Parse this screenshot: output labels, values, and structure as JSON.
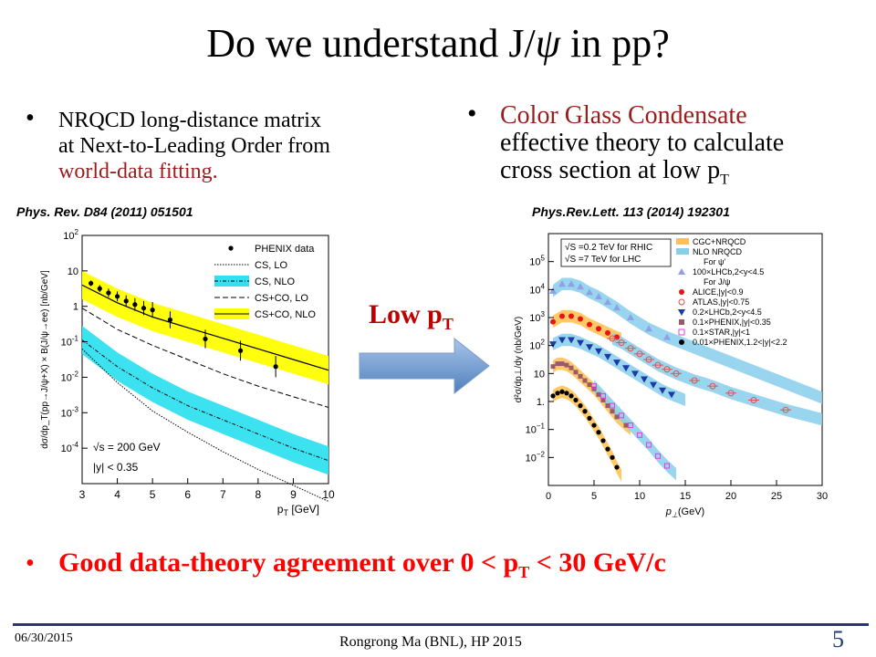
{
  "slide": {
    "title_pre": "Do we understand J/",
    "title_psi": "ψ",
    "title_post": " in pp?",
    "left_bullet_line1": "NRQCD long-distance matrix",
    "left_bullet_line2": "at Next-to-Leading Order from",
    "left_bullet_line3": "world-data fitting.",
    "right_bullet_line1": "Color Glass Condensate",
    "right_bullet_line2": "effective theory to calculate",
    "right_bullet_line3": "cross section at low p",
    "right_bullet_sub": "T",
    "left_ref": "Phys. Rev. D84 (2011) 051501",
    "right_ref": "Phys.Rev.Lett. 113 (2014) 192301",
    "arrow_label": "Low p",
    "arrow_label_sub": "T",
    "conclusion_pre": "Good data-theory agreement over 0 < p",
    "conclusion_sub": "T",
    "conclusion_post": " < 30 GeV/c",
    "footer_date": "06/30/2015",
    "footer_author": "Rongrong Ma (BNL), HP 2015",
    "page_number": "5",
    "bullet_glyph": "•",
    "colors": {
      "accent_red": "#9b1c1c",
      "conclusion_red": "#ff0000",
      "arrow_blue": "#4f81bd",
      "footer_blue": "#1f3a78"
    }
  },
  "chart_data": [
    {
      "type": "line",
      "log_y": true,
      "xlabel": "p",
      "xlabel_sub": "T",
      "xlabel_unit": " [GeV]",
      "ylabel": "dσ/dp_T(pp→J/ψ+X) × B(J/ψ→ee)  [nb/GeV]",
      "xlim": [
        3,
        10
      ],
      "ylim_exp": [
        -5,
        2
      ],
      "x_ticks": [
        "3",
        "4",
        "5",
        "6",
        "7",
        "8",
        "9",
        "10"
      ],
      "y_ticks": [
        {
          "base": "10",
          "exp": "2"
        },
        {
          "base": "10",
          "exp": ""
        },
        {
          "base": "1",
          "exp": ""
        },
        {
          "base": "10",
          "exp": "-1"
        },
        {
          "base": "10",
          "exp": "-2"
        },
        {
          "base": "10",
          "exp": "-3"
        },
        {
          "base": "10",
          "exp": "-4"
        }
      ],
      "legend": [
        "PHENIX data",
        "CS, LO",
        "CS, NLO",
        "CS+CO, LO",
        "CS+CO, NLO"
      ],
      "annotation_energy": "√s = 200 GeV",
      "annotation_rapidity": "|y| < 0.35",
      "series": [
        {
          "name": "PHENIX data",
          "x": [
            3.25,
            3.5,
            3.75,
            4.0,
            4.25,
            4.5,
            4.75,
            5.0,
            5.5,
            6.5,
            7.5,
            8.5
          ],
          "y_log10": [
            0.65,
            0.5,
            0.38,
            0.28,
            0.15,
            0.05,
            -0.05,
            -0.1,
            -0.38,
            -0.92,
            -1.25,
            -1.7
          ]
        },
        {
          "name": "CS+CO, NLO",
          "x": [
            3,
            4,
            5,
            6,
            7,
            8,
            9,
            10
          ],
          "y_log10": [
            0.6,
            0.1,
            -0.3,
            -0.6,
            -0.9,
            -1.2,
            -1.5,
            -1.8
          ],
          "band_halfwidth": 0.4
        },
        {
          "name": "CS+CO, LO",
          "x": [
            3,
            4,
            5,
            6,
            7,
            8,
            9,
            10
          ],
          "y_log10": [
            -0.05,
            -0.65,
            -1.1,
            -1.5,
            -1.9,
            -2.25,
            -2.55,
            -2.85
          ]
        },
        {
          "name": "CS, NLO",
          "x": [
            3,
            4,
            5,
            6,
            7,
            8,
            9,
            10
          ],
          "y_log10": [
            -0.95,
            -1.7,
            -2.3,
            -2.8,
            -3.2,
            -3.6,
            -4.0,
            -4.35
          ],
          "band_halfwidth": 0.4
        },
        {
          "name": "CS, LO",
          "x": [
            3,
            4,
            5,
            6,
            7,
            8,
            9,
            10
          ],
          "y_log10": [
            -1.2,
            -2.15,
            -2.95,
            -3.55,
            -4.1,
            -4.6,
            -5.05,
            -5.5
          ]
        }
      ]
    },
    {
      "type": "scatter",
      "log_y": true,
      "xlabel": "p",
      "xlabel_sub": "⊥",
      "xlabel_unit": "(GeV)",
      "ylabel": "d²σ/dp⊥/dy (nb/GeV)",
      "xlim": [
        0,
        30
      ],
      "ylim_exp": [
        -3,
        6
      ],
      "x_ticks": [
        "0",
        "5",
        "10",
        "15",
        "20",
        "25",
        "30"
      ],
      "y_ticks": [
        {
          "base": "10",
          "exp": "5"
        },
        {
          "base": "10",
          "exp": "4"
        },
        {
          "base": "10",
          "exp": "3"
        },
        {
          "base": "10",
          "exp": "2"
        },
        {
          "base": "10",
          "exp": ""
        },
        {
          "base": "1.",
          "exp": ""
        },
        {
          "base": "10",
          "exp": "−1"
        },
        {
          "base": "10",
          "exp": "−2"
        }
      ],
      "info_rhic": "√S =0.2 TeV for RHIC",
      "info_lhc": "√S =7 TeV for LHC",
      "legend": [
        "CGC+NRQCD",
        "NLO NRQCD",
        "For ψ'",
        "100×LHCb,2<y<4.5",
        "For J/ψ",
        "ALICE,|y|<0.9",
        "ATLAS,|y|<0.75",
        "0.2×LHCb,2<y<4.5",
        "0.1×PHENIX,|y|<0.35",
        "0.1×STAR,|y|<1",
        "0.01×PHENIX,1.2<|y|<2.2"
      ],
      "series": [
        {
          "name": "100×LHCb,2<y<4.5",
          "x": [
            0.5,
            1.5,
            2.5,
            3.5,
            4.5,
            5.5,
            6.5,
            7.5,
            9,
            11,
            13
          ],
          "y_log10": [
            3.95,
            4.2,
            4.2,
            4.1,
            3.9,
            3.75,
            3.55,
            3.35,
            3.0,
            2.6,
            2.3
          ]
        },
        {
          "name": "ALICE,|y|<0.9",
          "x": [
            0.5,
            1.5,
            2.5,
            3.5,
            4.5,
            5.5,
            6.5,
            7.5
          ],
          "y_log10": [
            2.85,
            3.05,
            3.05,
            2.95,
            2.75,
            2.6,
            2.45,
            2.3
          ]
        },
        {
          "name": "ATLAS,|y|<0.75",
          "x": [
            7,
            8,
            9,
            10,
            11,
            12,
            13,
            14,
            16,
            18,
            20,
            22.5,
            26
          ],
          "y_log10": [
            2.25,
            2.1,
            1.9,
            1.7,
            1.5,
            1.3,
            1.15,
            1.0,
            0.75,
            0.55,
            0.3,
            0.05,
            -0.3
          ]
        },
        {
          "name": "0.2×LHCb,2<y<4.5",
          "x": [
            0.5,
            1.5,
            2.5,
            3.5,
            4.5,
            5.5,
            6.5,
            7.5,
            8.5,
            9.5,
            10.5,
            11.5,
            12.5,
            13.5
          ],
          "y_log10": [
            2.05,
            2.2,
            2.2,
            2.1,
            1.95,
            1.8,
            1.6,
            1.4,
            1.2,
            1.0,
            0.8,
            0.6,
            0.4,
            0.25
          ]
        },
        {
          "name": "0.1×PHENIX,|y|<0.35",
          "x": [
            0.5,
            1,
            1.5,
            2,
            2.5,
            3,
            3.5,
            4,
            4.5,
            5,
            5.5,
            6,
            6.5,
            7,
            7.5,
            8.5
          ],
          "y_log10": [
            1.25,
            1.35,
            1.35,
            1.3,
            1.2,
            1.05,
            0.9,
            0.75,
            0.6,
            0.45,
            0.25,
            0.05,
            -0.15,
            -0.35,
            -0.55,
            -0.85
          ]
        },
        {
          "name": "0.1×STAR,|y|<1",
          "x": [
            5,
            6,
            7,
            8,
            9,
            10,
            11,
            12,
            13
          ],
          "y_log10": [
            0.55,
            0.2,
            -0.15,
            -0.5,
            -0.85,
            -1.2,
            -1.55,
            -1.95,
            -2.3
          ]
        },
        {
          "name": "0.01×PHENIX,1.2<|y|<2.2",
          "x": [
            0.5,
            1,
            1.5,
            2,
            2.5,
            3,
            3.5,
            4,
            4.5,
            5,
            5.5,
            6,
            6.5,
            7,
            7.5
          ],
          "y_log10": [
            0.2,
            0.3,
            0.35,
            0.3,
            0.2,
            0.05,
            -0.15,
            -0.35,
            -0.6,
            -0.85,
            -1.1,
            -1.4,
            -1.7,
            -2.0,
            -2.35
          ]
        }
      ]
    }
  ]
}
